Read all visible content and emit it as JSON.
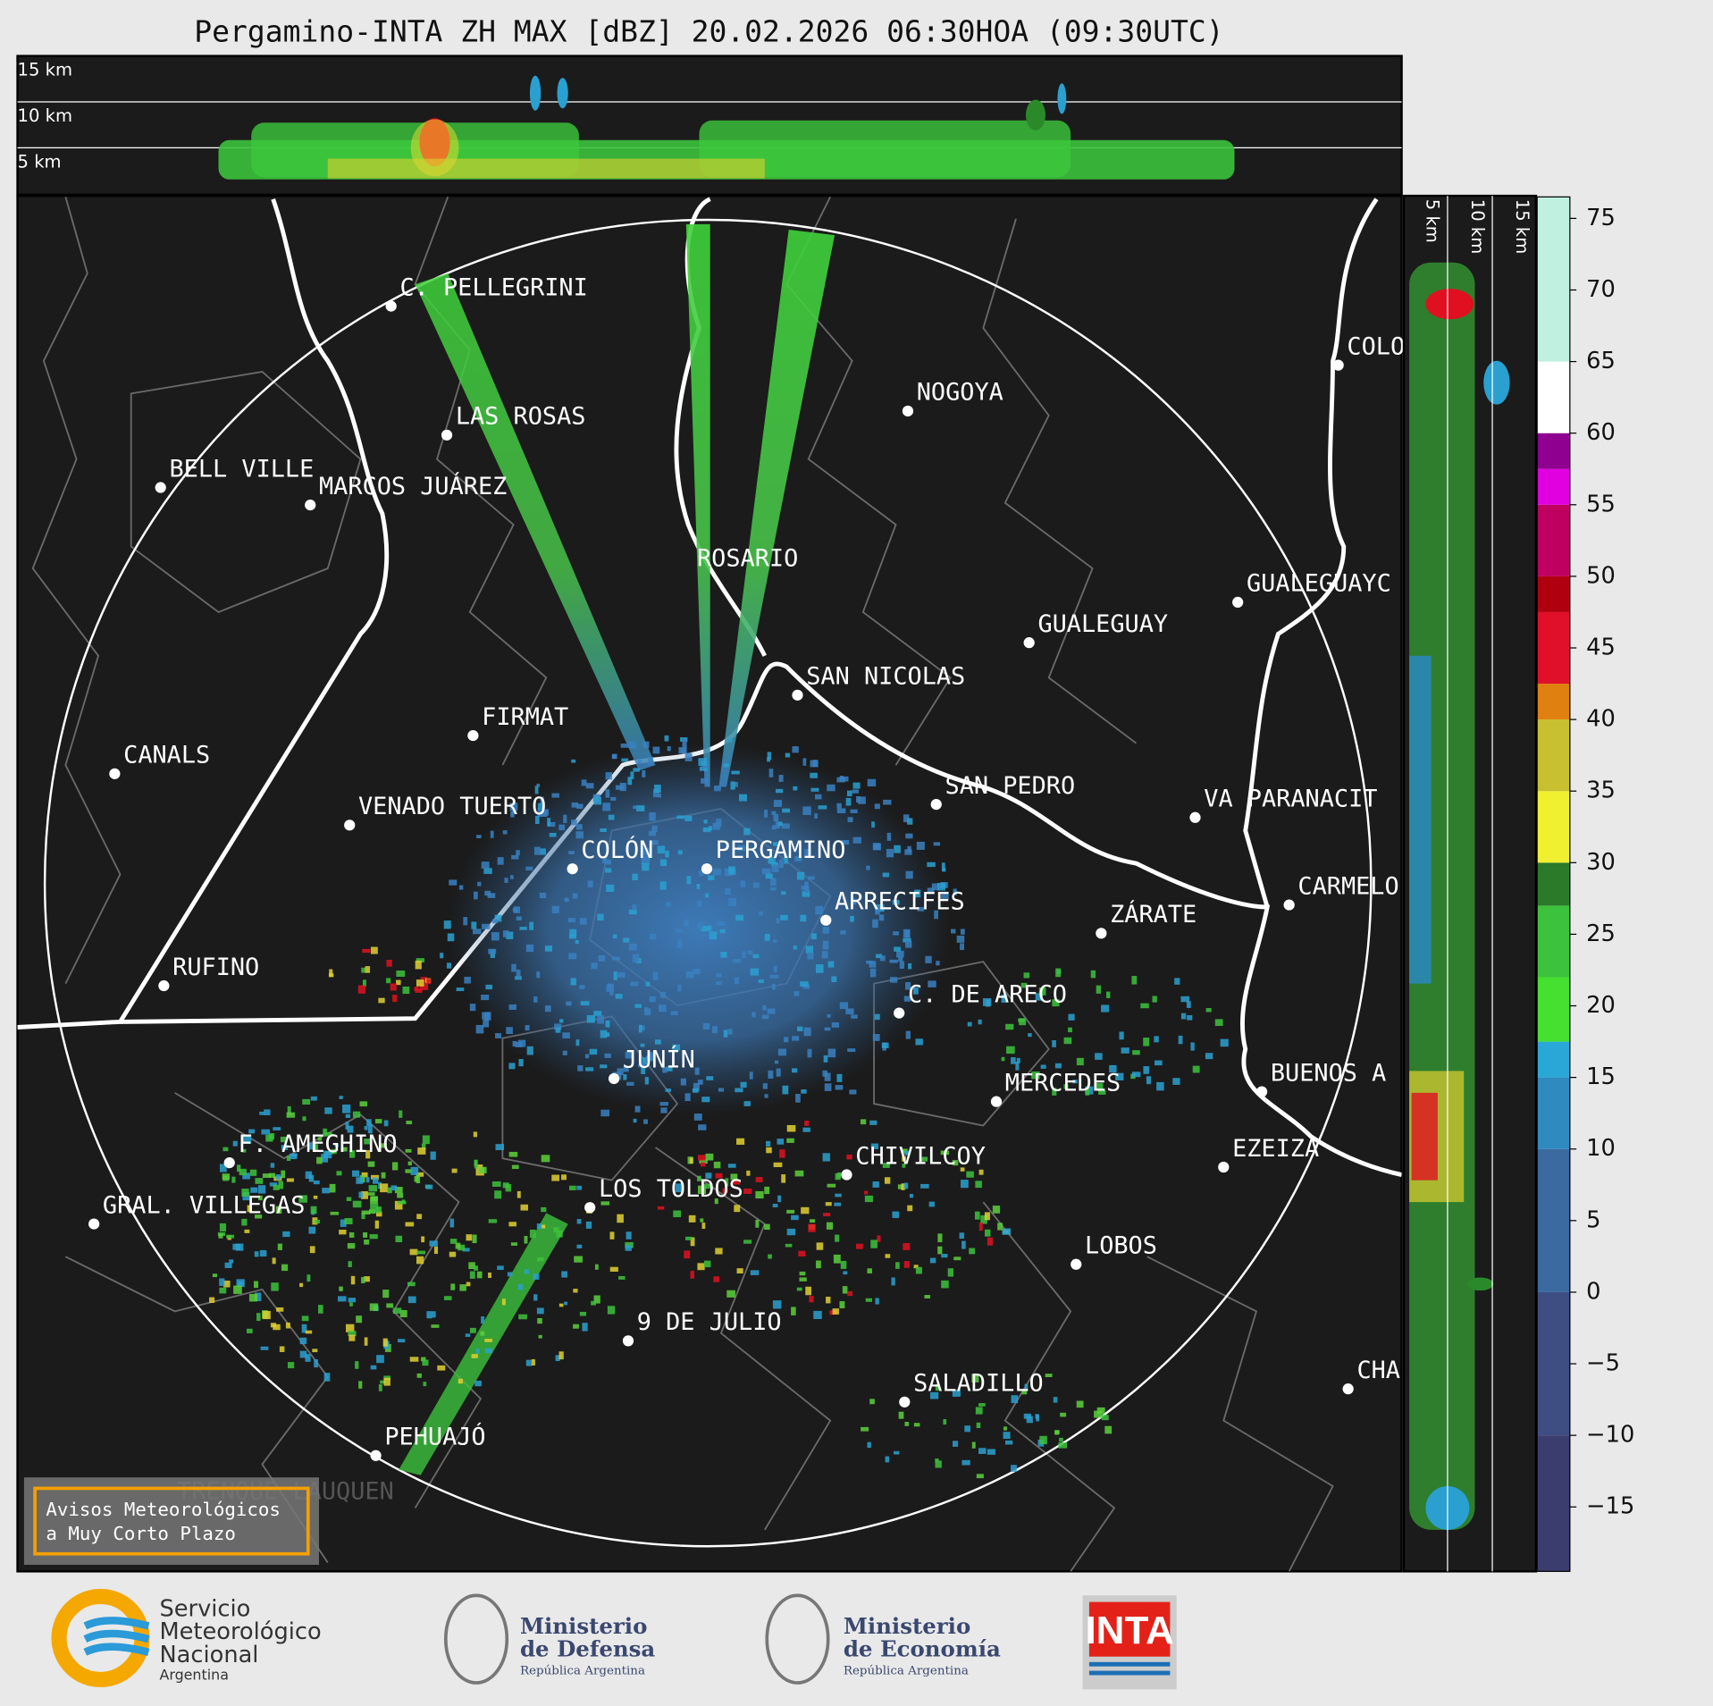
{
  "title": "Pergamino-INTA ZH MAX [dBZ] 20.02.2026 06:30HOA (09:30UTC)",
  "top_panel": {
    "labels": [
      "15 km",
      "10 km",
      "5 km"
    ]
  },
  "side_panel": {
    "labels": [
      "5 km",
      "10 km",
      "15 km"
    ]
  },
  "colorbar": {
    "lim": [
      -19.5,
      76.5
    ],
    "ticks": [
      75,
      70,
      65,
      60,
      55,
      50,
      45,
      40,
      35,
      30,
      25,
      20,
      15,
      10,
      5,
      0,
      {
        "value": -5,
        "label": "−5"
      },
      {
        "value": -10,
        "label": "−10"
      },
      {
        "value": -15,
        "label": "−15"
      }
    ]
  },
  "cities": [
    {
      "label": "C. PELLEGRINI"
    },
    {
      "label": "LAS ROSAS"
    },
    {
      "label": "BELL VILLE"
    },
    {
      "label": "MARCOS JUÁREZ"
    },
    {
      "label": "NOGOYA"
    },
    {
      "label": "ROSARIO"
    },
    {
      "label": "GUALEGUAYC"
    },
    {
      "label": "GUALEGUAY"
    },
    {
      "label": "SAN NICOLAS"
    },
    {
      "label": "FIRMAT"
    },
    {
      "label": "CANALS"
    },
    {
      "label": "SAN PEDRO"
    },
    {
      "label": "VENADO TUERTO"
    },
    {
      "label": "VA PARANACIT"
    },
    {
      "label": "COLÓN"
    },
    {
      "label": "PERGAMINO"
    },
    {
      "label": "ARRECIFES"
    },
    {
      "label": "CARMELO"
    },
    {
      "label": "ZÁRATE"
    },
    {
      "label": "RUFINO"
    },
    {
      "label": "C. DE ARECO"
    },
    {
      "label": "JUNÍN"
    },
    {
      "label": "BUENOS A"
    },
    {
      "label": "MERCEDES"
    },
    {
      "label": "F. AMEGHINO"
    },
    {
      "label": "EZEIZA"
    },
    {
      "label": "CHIVILCOY"
    },
    {
      "label": "LOS TOLDOS"
    },
    {
      "label": "GRAL. VILLEGAS"
    },
    {
      "label": "LOBOS"
    },
    {
      "label": "9 DE JULIO"
    },
    {
      "label": "SALADILLO"
    },
    {
      "label": "CHA"
    },
    {
      "label": "PEHUAJÓ"
    },
    {
      "label": "TRENQUE LAUQUEN"
    },
    {
      "label": "COLO"
    }
  ],
  "warning_box": {
    "line1": "Avisos Meteorológicos",
    "line2": "a Muy Corto Plazo"
  },
  "logos": {
    "smn": {
      "line1": "Servicio",
      "line2": "Meteorológico",
      "line3": "Nacional",
      "line4": "Argentina"
    },
    "defensa": {
      "line1": "Ministerio",
      "line2": "de Defensa",
      "line3": "República Argentina"
    },
    "economia": {
      "line1": "Ministerio",
      "line2": "de Economía",
      "line3": "República Argentina"
    },
    "inta": {
      "text": "INTA"
    }
  }
}
